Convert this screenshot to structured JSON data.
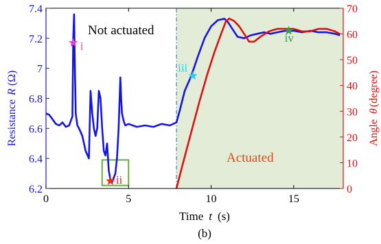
{
  "chart_data": {
    "type": "line",
    "caption": "(b)",
    "xlabel": {
      "prefix": "Time",
      "var": "t",
      "unit": "(s)"
    },
    "ylabel_left": {
      "prefix": "Resistance",
      "var": "R",
      "unit": "(Ω)"
    },
    "ylabel_right": {
      "prefix": "Angle",
      "var": "θ",
      "unit": "(degree)"
    },
    "xlim": [
      0,
      18
    ],
    "ylim_left": [
      6.2,
      7.4
    ],
    "ylim_right": [
      0,
      70
    ],
    "xticks": [
      0,
      5,
      10,
      15
    ],
    "xtick_labels": [
      "0",
      "5",
      "10",
      "15"
    ],
    "yticks_left": [
      6.2,
      6.4,
      6.6,
      6.8,
      7.0,
      7.2,
      7.4
    ],
    "ytick_labels_left": [
      "6.2",
      "6.4",
      "6.6",
      "6.8",
      "7",
      "7.2",
      "7.4"
    ],
    "yticks_right": [
      0,
      10,
      20,
      30,
      40,
      50,
      60,
      70
    ],
    "ytick_labels_right": [
      "0",
      "10",
      "20",
      "30",
      "40",
      "50",
      "60",
      "70"
    ],
    "colors": {
      "left_axis": "#1414e6",
      "right_axis": "#e01010",
      "shade": "#e2ecd6",
      "box": "#6aaa3a"
    },
    "regions": [
      {
        "label": "Not actuated",
        "x_range": [
          0,
          7.9
        ]
      },
      {
        "label": "Actuated",
        "x_range": [
          7.9,
          18
        ]
      }
    ],
    "divider_x": 7.9,
    "series": [
      {
        "axis": "left",
        "color": "#1414e6",
        "x": [
          0,
          0.2,
          0.4,
          0.6,
          0.8,
          1.0,
          1.2,
          1.4,
          1.6,
          1.65,
          1.7,
          1.75,
          1.8,
          1.9,
          2.0,
          2.2,
          2.4,
          2.6,
          2.7,
          2.8,
          2.9,
          3.0,
          3.1,
          3.2,
          3.3,
          3.4,
          3.5,
          3.6,
          3.7,
          3.8,
          3.9,
          4.0,
          4.1,
          4.2,
          4.3,
          4.4,
          4.5,
          4.55,
          4.6,
          4.7,
          4.8,
          5.0,
          5.5,
          6.0,
          6.5,
          7.0,
          7.5,
          7.9,
          8.1,
          8.4,
          8.8,
          9.2,
          9.6,
          10.0,
          10.4,
          10.8,
          11.0,
          11.3,
          11.6,
          12.0,
          12.4,
          12.8,
          13.2,
          13.6,
          14.0,
          14.5,
          15.0,
          15.5,
          16.0,
          16.5,
          17.0,
          17.5,
          17.8
        ],
        "y": [
          6.7,
          6.69,
          6.66,
          6.63,
          6.62,
          6.64,
          6.61,
          6.62,
          6.68,
          7.2,
          7.36,
          7.0,
          6.7,
          6.62,
          6.6,
          6.55,
          6.45,
          6.4,
          6.85,
          6.7,
          6.6,
          6.55,
          6.6,
          6.85,
          6.8,
          6.6,
          6.45,
          6.42,
          6.5,
          6.32,
          6.26,
          6.24,
          6.27,
          6.3,
          6.4,
          6.6,
          6.94,
          6.8,
          6.7,
          6.65,
          6.62,
          6.63,
          6.61,
          6.62,
          6.61,
          6.63,
          6.62,
          6.64,
          6.72,
          6.85,
          6.95,
          7.08,
          7.2,
          7.28,
          7.32,
          7.33,
          7.31,
          7.26,
          7.21,
          7.2,
          7.22,
          7.23,
          7.24,
          7.23,
          7.24,
          7.25,
          7.25,
          7.24,
          7.25,
          7.24,
          7.24,
          7.23,
          7.22
        ]
      },
      {
        "axis": "right",
        "color": "#e01010",
        "x": [
          7.9,
          8.3,
          8.8,
          9.3,
          9.8,
          10.2,
          10.6,
          10.9,
          11.1,
          11.4,
          11.7,
          12.0,
          12.3,
          12.6,
          13.0,
          13.5,
          14.0,
          14.5,
          15.0,
          15.5,
          16.0,
          16.5,
          17.0,
          17.5,
          17.8
        ],
        "y": [
          0,
          10,
          22,
          34,
          45,
          53,
          60,
          65,
          66,
          65,
          63,
          60,
          57,
          57,
          59,
          61,
          62,
          62,
          62,
          61,
          61,
          62,
          62,
          61,
          60
        ]
      }
    ],
    "markers": [
      {
        "label": "i",
        "x": 1.65,
        "y": 7.17,
        "color": "#e040d8",
        "label_color": "#e040d8"
      },
      {
        "label": "ii",
        "x": 3.9,
        "y": 6.25,
        "color": "#e82a10",
        "label_color": "#e82a10"
      },
      {
        "label": "iii",
        "x": 8.9,
        "y": 6.95,
        "color": "#30d0e8",
        "label_color": "#30d0e8"
      },
      {
        "label": "iv",
        "x": 14.7,
        "y": 7.25,
        "color": "#2aa050",
        "label_color": "#2aa050"
      }
    ],
    "highlight_box": {
      "x_range": [
        3.4,
        5.0
      ],
      "y_range": [
        6.22,
        6.39
      ]
    }
  }
}
